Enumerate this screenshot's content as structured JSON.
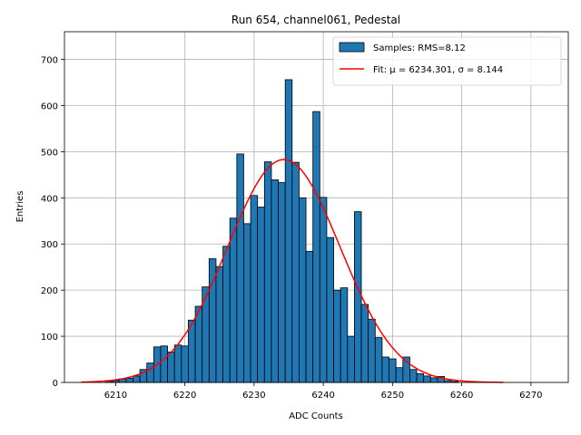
{
  "chart_data": {
    "type": "bar",
    "title": "Run 654, channel061, Pedestal",
    "xlabel": "ADC Counts",
    "ylabel": "Entries",
    "xlim": [
      6202.6,
      6275.4
    ],
    "ylim": [
      0,
      760
    ],
    "xticks": [
      6210,
      6220,
      6230,
      6240,
      6250,
      6260,
      6270
    ],
    "yticks": [
      0,
      100,
      200,
      300,
      400,
      500,
      600,
      700
    ],
    "grid": true,
    "legend_position": "top-right",
    "colors": {
      "bars": "#1f77b4",
      "bar_edge": "#000000",
      "fit": "#ff0000",
      "grid": "#b0b0b0"
    },
    "histogram": {
      "name": "Samples: RMS=8.12",
      "bin_width": 1,
      "bins": [
        {
          "x": 6209,
          "y": 3
        },
        {
          "x": 6210,
          "y": 4
        },
        {
          "x": 6211,
          "y": 8
        },
        {
          "x": 6212,
          "y": 9
        },
        {
          "x": 6213,
          "y": 14
        },
        {
          "x": 6214,
          "y": 28
        },
        {
          "x": 6215,
          "y": 42
        },
        {
          "x": 6216,
          "y": 77
        },
        {
          "x": 6217,
          "y": 79
        },
        {
          "x": 6218,
          "y": 66
        },
        {
          "x": 6219,
          "y": 81
        },
        {
          "x": 6220,
          "y": 79
        },
        {
          "x": 6221,
          "y": 135
        },
        {
          "x": 6222,
          "y": 165
        },
        {
          "x": 6223,
          "y": 207
        },
        {
          "x": 6224,
          "y": 268
        },
        {
          "x": 6225,
          "y": 251
        },
        {
          "x": 6226,
          "y": 295
        },
        {
          "x": 6227,
          "y": 356
        },
        {
          "x": 6228,
          "y": 495
        },
        {
          "x": 6229,
          "y": 344
        },
        {
          "x": 6230,
          "y": 405
        },
        {
          "x": 6231,
          "y": 380
        },
        {
          "x": 6232,
          "y": 478
        },
        {
          "x": 6233,
          "y": 439
        },
        {
          "x": 6234,
          "y": 433
        },
        {
          "x": 6235,
          "y": 656
        },
        {
          "x": 6236,
          "y": 477
        },
        {
          "x": 6237,
          "y": 400
        },
        {
          "x": 6238,
          "y": 284
        },
        {
          "x": 6239,
          "y": 587
        },
        {
          "x": 6240,
          "y": 401
        },
        {
          "x": 6241,
          "y": 314
        },
        {
          "x": 6242,
          "y": 200
        },
        {
          "x": 6243,
          "y": 205
        },
        {
          "x": 6244,
          "y": 100
        },
        {
          "x": 6245,
          "y": 370
        },
        {
          "x": 6246,
          "y": 169
        },
        {
          "x": 6247,
          "y": 137
        },
        {
          "x": 6248,
          "y": 97
        },
        {
          "x": 6249,
          "y": 55
        },
        {
          "x": 6250,
          "y": 51
        },
        {
          "x": 6251,
          "y": 32
        },
        {
          "x": 6252,
          "y": 55
        },
        {
          "x": 6253,
          "y": 28
        },
        {
          "x": 6254,
          "y": 19
        },
        {
          "x": 6255,
          "y": 14
        },
        {
          "x": 6256,
          "y": 10
        },
        {
          "x": 6257,
          "y": 13
        },
        {
          "x": 6258,
          "y": 4
        },
        {
          "x": 6259,
          "y": 2
        }
      ]
    },
    "fit": {
      "name": "Fit: μ = 6234.301, σ = 8.144",
      "type": "gaussian",
      "mu": 6234.301,
      "sigma": 8.144,
      "amplitude": 483,
      "x_range": [
        6205,
        6266
      ]
    }
  }
}
